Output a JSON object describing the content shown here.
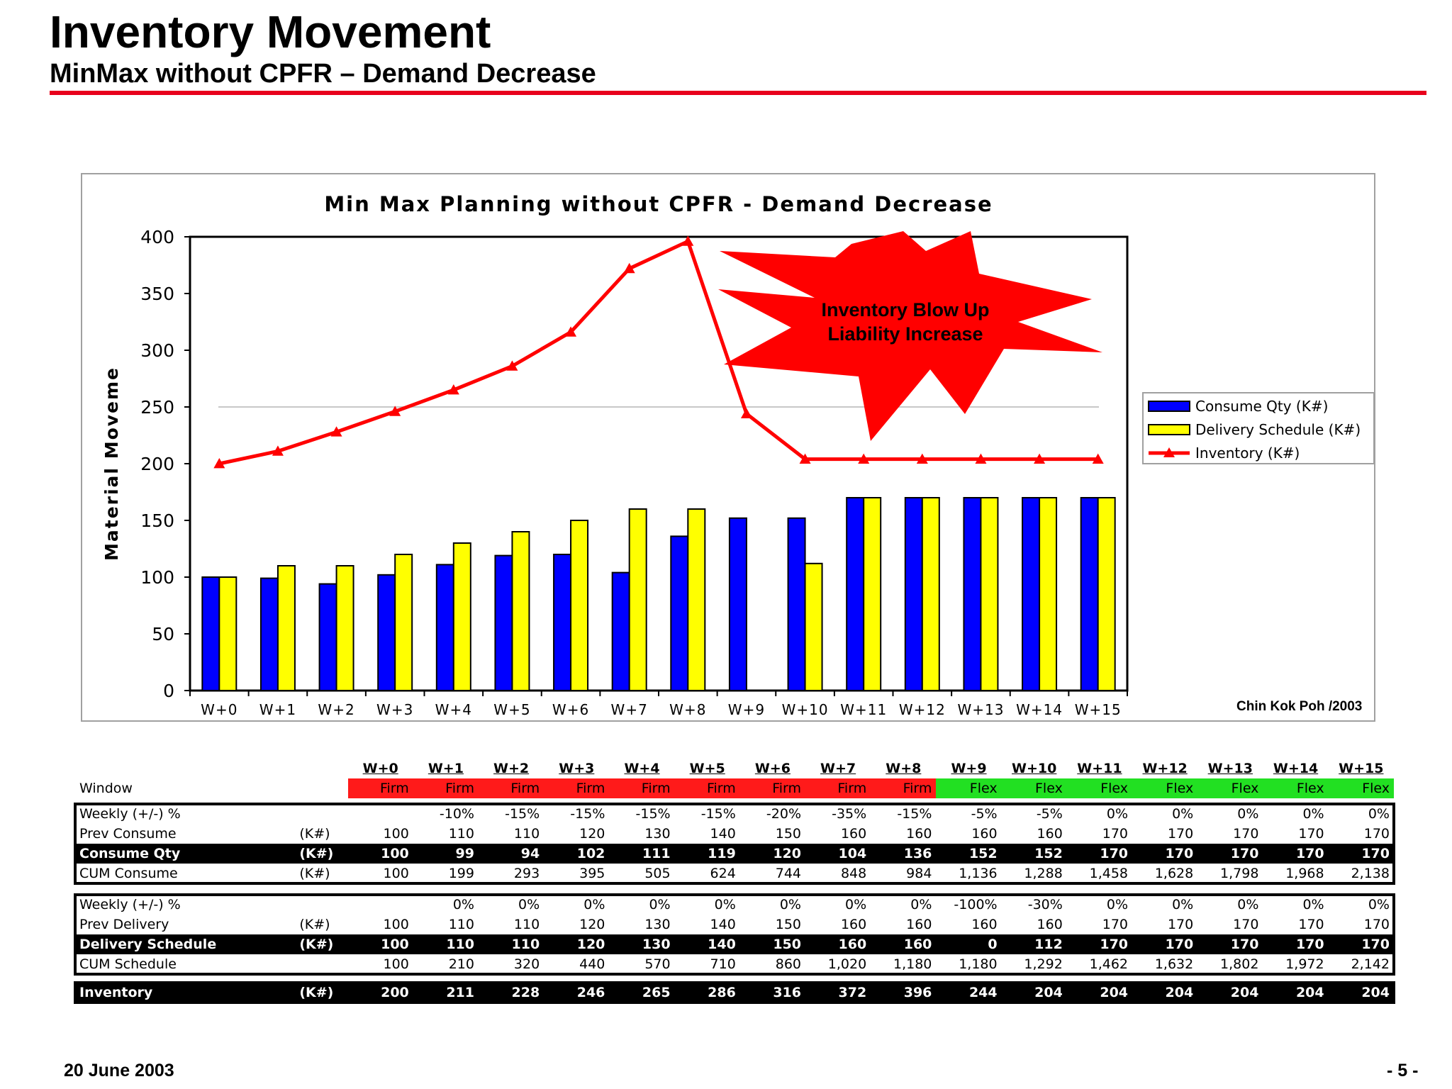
{
  "page": {
    "title": "Inventory Movement",
    "subtitle": "MinMax without CPFR – Demand Decrease",
    "date": "20 June 2003",
    "page_number": "- 5 -",
    "credit": "Chin Kok Poh /2003"
  },
  "callout": {
    "line1": "Inventory Blow Up",
    "line2": "Liability Increase",
    "color": "#ff0000"
  },
  "chart_data": {
    "type": "bar",
    "title": "Min Max Planning without CPFR - Demand Decrease",
    "xlabel": "",
    "ylabel": "Material Moveme",
    "ylim": [
      0,
      400
    ],
    "yticks": [
      0,
      50,
      100,
      150,
      200,
      250,
      300,
      350,
      400
    ],
    "categories": [
      "W+0",
      "W+1",
      "W+2",
      "W+3",
      "W+4",
      "W+5",
      "W+6",
      "W+7",
      "W+8",
      "W+9",
      "W+10",
      "W+11",
      "W+12",
      "W+13",
      "W+14",
      "W+15"
    ],
    "grid": "horizontal line at 250",
    "legend_position": "right",
    "series": [
      {
        "name": "Consume Qty (K#)",
        "kind": "bar",
        "color": "#0000ff",
        "values": [
          100,
          99,
          94,
          102,
          111,
          119,
          120,
          104,
          136,
          152,
          152,
          170,
          170,
          170,
          170,
          170
        ]
      },
      {
        "name": "Delivery Schedule (K#)",
        "kind": "bar",
        "color": "#ffff00",
        "values": [
          100,
          110,
          110,
          120,
          130,
          140,
          150,
          160,
          160,
          0,
          112,
          170,
          170,
          170,
          170,
          170
        ]
      },
      {
        "name": "Inventory (K#)",
        "kind": "line",
        "color": "#ff0000",
        "values": [
          200,
          211,
          228,
          246,
          265,
          286,
          316,
          372,
          396,
          244,
          204,
          204,
          204,
          204,
          204,
          204
        ]
      }
    ]
  },
  "table": {
    "weeks": [
      "W+0",
      "W+1",
      "W+2",
      "W+3",
      "W+4",
      "W+5",
      "W+6",
      "W+7",
      "W+8",
      "W+9",
      "W+10",
      "W+11",
      "W+12",
      "W+13",
      "W+14",
      "W+15"
    ],
    "window_label": "Window",
    "window": [
      "Firm",
      "Firm",
      "Firm",
      "Firm",
      "Firm",
      "Firm",
      "Firm",
      "Firm",
      "Firm",
      "Flex",
      "Flex",
      "Flex",
      "Flex",
      "Flex",
      "Flex",
      "Flex"
    ],
    "consume_block": [
      {
        "label": "Weekly (+/-) %",
        "unit": "",
        "style": "normal",
        "values": [
          "",
          "-10%",
          "-15%",
          "-15%",
          "-15%",
          "-15%",
          "-20%",
          "-35%",
          "-15%",
          "-5%",
          "-5%",
          "0%",
          "0%",
          "0%",
          "0%",
          "0%"
        ]
      },
      {
        "label": "Prev Consume",
        "unit": "(K#)",
        "style": "normal",
        "values": [
          "100",
          "110",
          "110",
          "120",
          "130",
          "140",
          "150",
          "160",
          "160",
          "160",
          "160",
          "170",
          "170",
          "170",
          "170",
          "170"
        ]
      },
      {
        "label": "Consume Qty",
        "unit": "(K#)",
        "style": "black",
        "values": [
          "100",
          "99",
          "94",
          "102",
          "111",
          "119",
          "120",
          "104",
          "136",
          "152",
          "152",
          "170",
          "170",
          "170",
          "170",
          "170"
        ]
      },
      {
        "label": "CUM Consume",
        "unit": "(K#)",
        "style": "normal",
        "values": [
          "100",
          "199",
          "293",
          "395",
          "505",
          "624",
          "744",
          "848",
          "984",
          "1,136",
          "1,288",
          "1,458",
          "1,628",
          "1,798",
          "1,968",
          "2,138"
        ]
      }
    ],
    "delivery_block": [
      {
        "label": "Weekly (+/-) %",
        "unit": "",
        "style": "normal",
        "values": [
          "",
          "0%",
          "0%",
          "0%",
          "0%",
          "0%",
          "0%",
          "0%",
          "0%",
          "-100%",
          "-30%",
          "0%",
          "0%",
          "0%",
          "0%",
          "0%"
        ]
      },
      {
        "label": "Prev Delivery",
        "unit": "(K#)",
        "style": "normal",
        "values": [
          "100",
          "110",
          "110",
          "120",
          "130",
          "140",
          "150",
          "160",
          "160",
          "160",
          "160",
          "170",
          "170",
          "170",
          "170",
          "170"
        ]
      },
      {
        "label": "Delivery Schedule",
        "unit": "(K#)",
        "style": "black",
        "values": [
          "100",
          "110",
          "110",
          "120",
          "130",
          "140",
          "150",
          "160",
          "160",
          "0",
          "112",
          "170",
          "170",
          "170",
          "170",
          "170"
        ]
      },
      {
        "label": "CUM Schedule",
        "unit": "",
        "style": "normal",
        "values": [
          "100",
          "210",
          "320",
          "440",
          "570",
          "710",
          "860",
          "1,020",
          "1,180",
          "1,180",
          "1,292",
          "1,462",
          "1,632",
          "1,802",
          "1,972",
          "2,142"
        ]
      }
    ],
    "inventory_row": {
      "label": "Inventory",
      "unit": "(K#)",
      "values": [
        "200",
        "211",
        "228",
        "246",
        "265",
        "286",
        "316",
        "372",
        "396",
        "244",
        "204",
        "204",
        "204",
        "204",
        "204",
        "204"
      ]
    }
  }
}
